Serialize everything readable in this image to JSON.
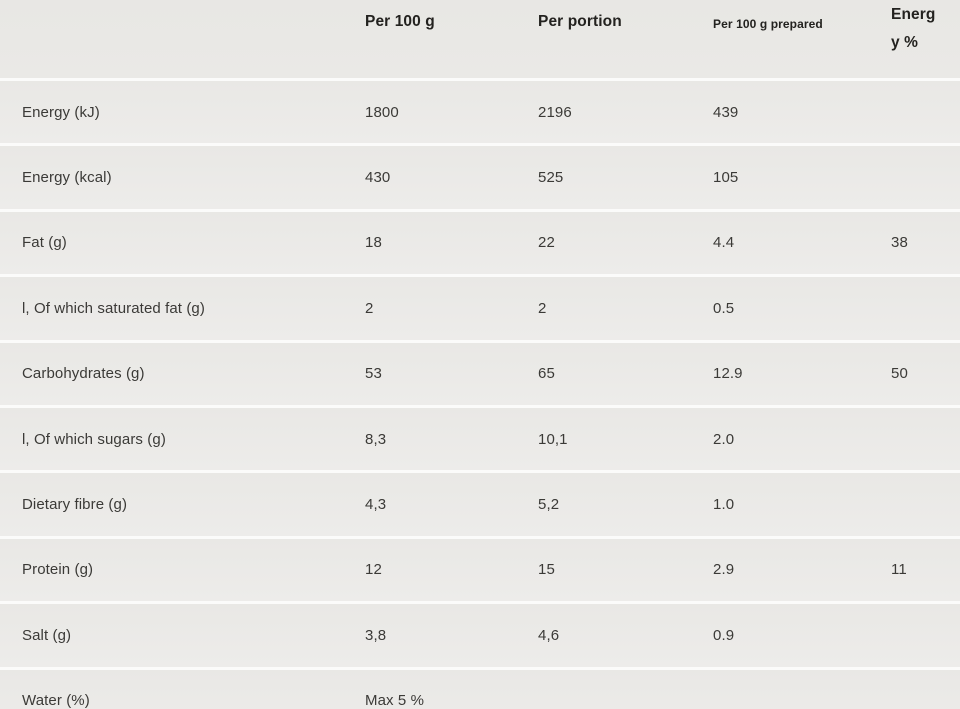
{
  "colors": {
    "header_bg_top": "#e8e7e4",
    "header_bg_bottom": "#eae9e6",
    "row_bg_top": "#e9e8e5",
    "row_bg_bottom": "#edeceA",
    "separator": "#fbfbfa",
    "header_text": "#23221f",
    "body_text": "#3b3a37"
  },
  "table": {
    "columns": {
      "per_100g": "Per 100 g",
      "per_portion": "Per portion",
      "per_100g_prepared": "Per 100 g prepared",
      "energy_pct": {
        "label": "Energy %",
        "wrap": [
          "Energ",
          "y %"
        ]
      }
    },
    "rows": [
      {
        "label": "Energy (kJ)",
        "per_100g": "1800",
        "per_portion": "2196",
        "per_100g_prepared": "439",
        "energy_pct": ""
      },
      {
        "label": "Energy (kcal)",
        "per_100g": "430",
        "per_portion": "525",
        "per_100g_prepared": "105",
        "energy_pct": ""
      },
      {
        "label": "Fat (g)",
        "per_100g": "18",
        "per_portion": "22",
        "per_100g_prepared": "4.4",
        "energy_pct": "38"
      },
      {
        "label": "l, Of which saturated fat (g)",
        "per_100g": "2",
        "per_portion": "2",
        "per_100g_prepared": "0.5",
        "energy_pct": ""
      },
      {
        "label": "Carbohydrates (g)",
        "per_100g": "53",
        "per_portion": "65",
        "per_100g_prepared": "12.9",
        "energy_pct": "50"
      },
      {
        "label": "l, Of which sugars (g)",
        "per_100g": "8,3",
        "per_portion": "10,1",
        "per_100g_prepared": "2.0",
        "energy_pct": ""
      },
      {
        "label": "Dietary fibre (g)",
        "per_100g": "4,3",
        "per_portion": "5,2",
        "per_100g_prepared": "1.0",
        "energy_pct": ""
      },
      {
        "label": "Protein (g)",
        "per_100g": "12",
        "per_portion": "15",
        "per_100g_prepared": "2.9",
        "energy_pct": "11"
      },
      {
        "label": "Salt (g)",
        "per_100g": "3,8",
        "per_portion": "4,6",
        "per_100g_prepared": "0.9",
        "energy_pct": ""
      },
      {
        "label": "Water (%)",
        "per_100g": "Max 5 %",
        "per_portion": "",
        "per_100g_prepared": "",
        "energy_pct": ""
      }
    ]
  }
}
